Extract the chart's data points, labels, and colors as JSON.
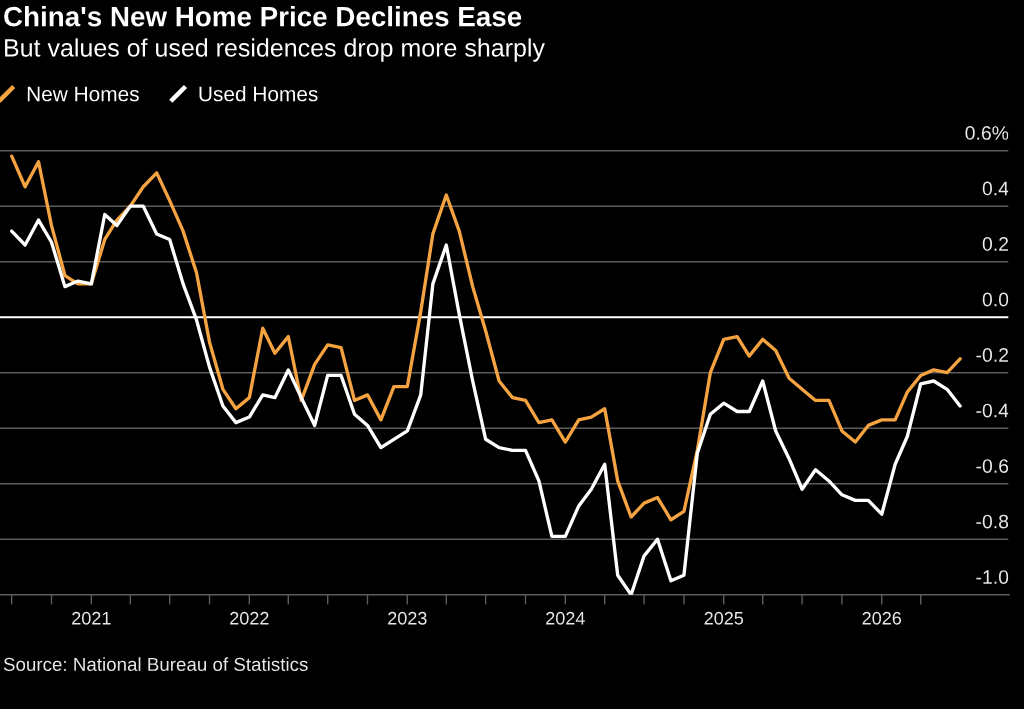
{
  "chart_data": {
    "type": "line",
    "title": "China's New Home Price Declines Ease",
    "subtitle": "But values of used residences drop more sharply",
    "annotations": [
      "Source: National Bureau of Statistics"
    ],
    "x": [
      "2020-07",
      "2020-08",
      "2020-09",
      "2020-10",
      "2020-11",
      "2020-12",
      "2021-01",
      "2021-02",
      "2021-03",
      "2021-04",
      "2021-05",
      "2021-06",
      "2021-07",
      "2021-08",
      "2021-09",
      "2021-10",
      "2021-11",
      "2021-12",
      "2022-01",
      "2022-02",
      "2022-03",
      "2022-04",
      "2022-05",
      "2022-06",
      "2022-07",
      "2022-08",
      "2022-09",
      "2022-10",
      "2022-11",
      "2022-12",
      "2023-01",
      "2023-02",
      "2023-03",
      "2023-04",
      "2023-05",
      "2023-06",
      "2023-07",
      "2023-08",
      "2023-09",
      "2023-10",
      "2023-11",
      "2023-12",
      "2024-01",
      "2024-02",
      "2024-03",
      "2024-04",
      "2024-05",
      "2024-06",
      "2024-07",
      "2024-08",
      "2024-09",
      "2024-10",
      "2024-11",
      "2024-12",
      "2025-01",
      "2025-02",
      "2025-03",
      "2025-04",
      "2025-05",
      "2025-06",
      "2025-07",
      "2025-08",
      "2025-09",
      "2025-10",
      "2025-11",
      "2025-12",
      "2026-01",
      "2026-02",
      "2026-03",
      "2026-04",
      "2026-05",
      "2026-06",
      "2026-07"
    ],
    "series": [
      {
        "name": "New Homes",
        "color": "#f4a340",
        "values": [
          0.58,
          0.47,
          0.56,
          0.33,
          0.15,
          0.12,
          0.12,
          0.28,
          0.35,
          0.4,
          0.47,
          0.52,
          0.42,
          0.31,
          0.16,
          -0.09,
          -0.26,
          -0.33,
          -0.29,
          -0.04,
          -0.13,
          -0.07,
          -0.3,
          -0.17,
          -0.1,
          -0.11,
          -0.3,
          -0.28,
          -0.37,
          -0.25,
          -0.25,
          0.02,
          0.3,
          0.44,
          0.31,
          0.11,
          -0.05,
          -0.23,
          -0.29,
          -0.3,
          -0.38,
          -0.37,
          -0.45,
          -0.37,
          -0.36,
          -0.33,
          -0.59,
          -0.72,
          -0.67,
          -0.65,
          -0.73,
          -0.7,
          -0.48,
          -0.2,
          -0.08,
          -0.07,
          -0.14,
          -0.08,
          -0.12,
          -0.22,
          -0.26,
          -0.3,
          -0.3,
          -0.41,
          -0.45,
          -0.39,
          -0.37,
          -0.37,
          -0.27,
          -0.21,
          -0.19,
          -0.2,
          -0.15
        ]
      },
      {
        "name": "Used Homes",
        "color": "#ffffff",
        "values": [
          0.31,
          0.26,
          0.35,
          0.27,
          0.11,
          0.13,
          0.12,
          0.37,
          0.33,
          0.4,
          0.4,
          0.3,
          0.28,
          0.12,
          -0.01,
          -0.18,
          -0.32,
          -0.38,
          -0.36,
          -0.28,
          -0.29,
          -0.19,
          -0.29,
          -0.39,
          -0.21,
          -0.21,
          -0.35,
          -0.39,
          -0.47,
          -0.44,
          -0.41,
          -0.28,
          0.12,
          0.26,
          0.01,
          -0.23,
          -0.44,
          -0.47,
          -0.48,
          -0.48,
          -0.59,
          -0.79,
          -0.79,
          -0.68,
          -0.62,
          -0.53,
          -0.93,
          -1.0,
          -0.86,
          -0.8,
          -0.95,
          -0.93,
          -0.49,
          -0.35,
          -0.31,
          -0.34,
          -0.34,
          -0.23,
          -0.41,
          -0.51,
          -0.62,
          -0.55,
          -0.59,
          -0.64,
          -0.66,
          -0.66,
          -0.71,
          -0.53,
          -0.43,
          -0.24,
          -0.23,
          -0.26,
          -0.32
        ]
      }
    ],
    "xlim": [
      "2020-06-04",
      "2026-10-22"
    ],
    "ylim": [
      -1.0,
      0.66
    ],
    "xticks": [
      {
        "value": "2020-07",
        "label": null
      },
      {
        "value": "2020-10",
        "label": null
      },
      "2021",
      {
        "value": "2021-04",
        "label": null
      },
      {
        "value": "2021-07",
        "label": null
      },
      {
        "value": "2021-10",
        "label": null
      },
      "2022",
      {
        "value": "2022-04",
        "label": null
      },
      {
        "value": "2022-07",
        "label": null
      },
      {
        "value": "2022-10",
        "label": null
      },
      "2023",
      {
        "value": "2023-04",
        "label": null
      },
      {
        "value": "2023-07",
        "label": null
      },
      {
        "value": "2023-10",
        "label": null
      },
      "2024",
      {
        "value": "2024-04",
        "label": null
      },
      {
        "value": "2024-07",
        "label": null
      },
      {
        "value": "2024-10",
        "label": null
      },
      "2025",
      {
        "value": "2025-04",
        "label": null
      },
      {
        "value": "2025-07",
        "label": null
      },
      {
        "value": "2025-10",
        "label": null
      },
      "2026",
      {
        "value": "2026-04",
        "label": null
      }
    ],
    "yticks": [
      {
        "value": -1.0,
        "label": "-1.0"
      },
      -0.8,
      -0.6,
      -0.4,
      -0.2,
      {
        "value": 0,
        "label": "0.0"
      },
      0.2,
      0.4,
      {
        "value": 0.6,
        "label": "0.6%"
      }
    ],
    "grid": "y",
    "legend": "top left",
    "ref_lines": [
      {
        "axis": "y",
        "value": 0,
        "color": "#ffffff"
      }
    ]
  }
}
